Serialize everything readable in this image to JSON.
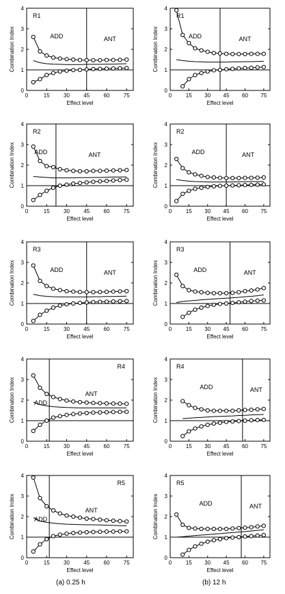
{
  "captions": [
    "(a) 0.25 h",
    "(b) 12 h"
  ],
  "common": {
    "ylabel": "Combination Index",
    "xlabel": "Effect level",
    "xticks": [
      0,
      15,
      30,
      45,
      60,
      75
    ],
    "yticks": [
      0,
      1,
      2,
      3,
      4
    ],
    "xlim": [
      0,
      80
    ],
    "ylim": [
      0,
      4
    ],
    "reference_y": 1
  },
  "chart_data": [
    {
      "type": "line",
      "panel": "R1",
      "column": "0.25 h",
      "divider_x": 45,
      "add_label": "ADD",
      "ant_label": "ANT",
      "label_position": "top-left",
      "x": [
        5,
        10,
        15,
        20,
        25,
        30,
        35,
        40,
        45,
        50,
        55,
        60,
        65,
        70,
        75
      ],
      "series": [
        {
          "role": "upper",
          "values": [
            2.6,
            1.9,
            1.7,
            1.6,
            1.55,
            1.52,
            1.5,
            1.48,
            1.47,
            1.47,
            1.47,
            1.48,
            1.48,
            1.49,
            1.5
          ]
        },
        {
          "role": "mean",
          "values": [
            1.45,
            1.35,
            1.3,
            1.28,
            1.27,
            1.26,
            1.26,
            1.26,
            1.27,
            1.27,
            1.27,
            1.28,
            1.28,
            1.29,
            1.3
          ]
        },
        {
          "role": "lower",
          "values": [
            0.4,
            0.55,
            0.75,
            0.85,
            0.92,
            0.96,
            0.99,
            1.0,
            1.02,
            1.04,
            1.05,
            1.06,
            1.07,
            1.08,
            1.09
          ]
        }
      ]
    },
    {
      "type": "line",
      "panel": "R1",
      "column": "12 h",
      "divider_x": 40,
      "add_label": "ADD",
      "ant_label": "ANT",
      "label_position": "top-left",
      "x": [
        5,
        10,
        15,
        20,
        25,
        30,
        35,
        40,
        45,
        50,
        55,
        60,
        65,
        70,
        75
      ],
      "series": [
        {
          "role": "upper",
          "values": [
            3.9,
            2.7,
            2.3,
            2.05,
            1.95,
            1.88,
            1.82,
            1.8,
            1.78,
            1.77,
            1.77,
            1.77,
            1.78,
            1.78,
            1.78
          ]
        },
        {
          "role": "mean",
          "values": [
            1.5,
            1.45,
            1.42,
            1.4,
            1.39,
            1.38,
            1.38,
            1.38,
            1.38,
            1.39,
            1.39,
            1.4,
            1.4,
            1.41,
            1.42
          ]
        },
        {
          "role": "lower",
          "values": [
            null,
            0.2,
            0.55,
            0.75,
            0.85,
            0.92,
            0.98,
            1.0,
            1.03,
            1.05,
            1.07,
            1.09,
            1.1,
            1.12,
            1.14
          ]
        }
      ]
    },
    {
      "type": "line",
      "panel": "R2",
      "column": "0.25 h",
      "divider_x": 22,
      "add_label": "ADD",
      "ant_label": "ANT",
      "label_position": "top-left",
      "x": [
        5,
        10,
        15,
        20,
        25,
        30,
        35,
        40,
        45,
        50,
        55,
        60,
        65,
        70,
        75
      ],
      "series": [
        {
          "role": "upper",
          "values": [
            2.9,
            2.2,
            1.95,
            1.9,
            1.8,
            1.75,
            1.72,
            1.7,
            1.7,
            1.72,
            1.72,
            1.73,
            1.74,
            1.75,
            1.76
          ]
        },
        {
          "role": "mean",
          "values": [
            1.45,
            1.42,
            1.4,
            1.38,
            1.38,
            1.38,
            1.38,
            1.39,
            1.39,
            1.4,
            1.4,
            1.41,
            1.42,
            1.42,
            1.43
          ]
        },
        {
          "role": "lower",
          "values": [
            0.3,
            0.55,
            0.75,
            0.9,
            1.0,
            1.05,
            1.1,
            1.13,
            1.16,
            1.19,
            1.21,
            1.23,
            1.25,
            1.27,
            1.29
          ]
        }
      ]
    },
    {
      "type": "line",
      "panel": "R2",
      "column": "12 h",
      "divider_x": 45,
      "add_label": "ADD",
      "ant_label": "ANT",
      "label_position": "top-left",
      "x": [
        5,
        10,
        15,
        20,
        25,
        30,
        35,
        40,
        45,
        50,
        55,
        60,
        65,
        70,
        75
      ],
      "series": [
        {
          "role": "upper",
          "values": [
            2.3,
            1.85,
            1.65,
            1.55,
            1.48,
            1.42,
            1.4,
            1.38,
            1.37,
            1.37,
            1.37,
            1.38,
            1.38,
            1.39,
            1.4
          ]
        },
        {
          "role": "mean",
          "values": [
            1.3,
            1.25,
            1.22,
            1.2,
            1.19,
            1.18,
            1.18,
            1.18,
            1.18,
            1.18,
            1.19,
            1.19,
            1.2,
            1.2,
            1.21
          ]
        },
        {
          "role": "lower",
          "values": [
            0.25,
            0.6,
            0.75,
            0.85,
            0.9,
            0.94,
            0.97,
            0.99,
            1.0,
            1.01,
            1.02,
            1.03,
            1.04,
            1.05,
            1.06
          ]
        }
      ]
    },
    {
      "type": "line",
      "panel": "R3",
      "column": "0.25 h",
      "divider_x": 45,
      "add_label": "ADD",
      "ant_label": "ANT",
      "label_position": "top-left",
      "x": [
        5,
        10,
        15,
        20,
        25,
        30,
        35,
        40,
        45,
        50,
        55,
        60,
        65,
        70,
        75
      ],
      "series": [
        {
          "role": "upper",
          "values": [
            2.85,
            2.1,
            1.85,
            1.72,
            1.65,
            1.6,
            1.58,
            1.56,
            1.55,
            1.55,
            1.56,
            1.57,
            1.58,
            1.59,
            1.6
          ]
        },
        {
          "role": "mean",
          "values": [
            1.45,
            1.38,
            1.35,
            1.33,
            1.32,
            1.32,
            1.32,
            1.32,
            1.32,
            1.33,
            1.33,
            1.34,
            1.34,
            1.35,
            1.36
          ]
        },
        {
          "role": "lower",
          "values": [
            0.15,
            0.45,
            0.65,
            0.8,
            0.9,
            0.96,
            1.0,
            1.03,
            1.05,
            1.07,
            1.08,
            1.09,
            1.1,
            1.11,
            1.12
          ]
        }
      ]
    },
    {
      "type": "line",
      "panel": "R3",
      "column": "12 h",
      "divider_x": 48,
      "add_label": "ADD",
      "ant_label": "ANT",
      "label_position": "top-left",
      "x": [
        5,
        10,
        15,
        20,
        25,
        30,
        35,
        40,
        45,
        50,
        55,
        60,
        65,
        70,
        75
      ],
      "series": [
        {
          "role": "upper",
          "values": [
            2.4,
            1.85,
            1.65,
            1.58,
            1.55,
            1.52,
            1.5,
            1.5,
            1.5,
            1.52,
            1.55,
            1.6,
            1.63,
            1.68,
            1.75
          ]
        },
        {
          "role": "mean",
          "values": [
            1.05,
            1.1,
            1.13,
            1.15,
            1.18,
            1.2,
            1.22,
            1.24,
            1.26,
            1.28,
            1.3,
            1.33,
            1.35,
            1.38,
            1.42
          ]
        },
        {
          "role": "lower",
          "values": [
            null,
            0.35,
            0.55,
            0.7,
            0.8,
            0.88,
            0.94,
            0.98,
            1.0,
            1.03,
            1.06,
            1.09,
            1.12,
            1.14,
            1.15
          ]
        }
      ]
    },
    {
      "type": "line",
      "panel": "R4",
      "column": "0.25 h",
      "divider_x": 17,
      "add_label": "ADD",
      "ant_label": "ANT",
      "label_position": "top-right",
      "x": [
        5,
        10,
        15,
        20,
        25,
        30,
        35,
        40,
        45,
        50,
        55,
        60,
        65,
        70,
        75
      ],
      "series": [
        {
          "role": "upper",
          "values": [
            3.2,
            2.6,
            2.3,
            2.15,
            2.05,
            1.98,
            1.93,
            1.9,
            1.88,
            1.86,
            1.85,
            1.84,
            1.83,
            1.83,
            1.82
          ]
        },
        {
          "role": "mean",
          "values": [
            1.9,
            1.78,
            1.72,
            1.68,
            1.66,
            1.64,
            1.63,
            1.62,
            1.62,
            1.62,
            1.62,
            1.62,
            1.62,
            1.62,
            1.62
          ]
        },
        {
          "role": "lower",
          "values": [
            0.5,
            0.8,
            1.0,
            1.15,
            1.22,
            1.28,
            1.32,
            1.35,
            1.37,
            1.39,
            1.4,
            1.41,
            1.42,
            1.43,
            1.43
          ]
        }
      ]
    },
    {
      "type": "line",
      "panel": "R4",
      "column": "12 h",
      "divider_x": 58,
      "add_label": "ADD",
      "ant_label": "ANT",
      "label_position": "top-left",
      "x": [
        10,
        15,
        20,
        25,
        30,
        35,
        40,
        45,
        50,
        55,
        60,
        65,
        70,
        75
      ],
      "series": [
        {
          "role": "upper",
          "values": [
            1.95,
            1.75,
            1.62,
            1.55,
            1.5,
            1.48,
            1.48,
            1.48,
            1.48,
            1.5,
            1.52,
            1.53,
            1.55,
            1.57
          ]
        },
        {
          "role": "mean",
          "values": [
            1.1,
            1.12,
            1.14,
            1.16,
            1.18,
            1.2,
            1.21,
            1.22,
            1.23,
            1.25,
            1.26,
            1.28,
            1.29,
            1.3
          ]
        },
        {
          "role": "lower",
          "values": [
            0.25,
            0.48,
            0.62,
            0.72,
            0.8,
            0.86,
            0.9,
            0.94,
            0.96,
            0.98,
            1.0,
            1.02,
            1.03,
            1.04
          ]
        }
      ]
    },
    {
      "type": "line",
      "panel": "R5",
      "column": "0.25 h",
      "divider_x": 17,
      "add_label": "ADD",
      "ant_label": "ANT",
      "label_position": "top-right",
      "x": [
        5,
        10,
        15,
        20,
        25,
        30,
        35,
        40,
        45,
        50,
        55,
        60,
        65,
        70,
        75
      ],
      "series": [
        {
          "role": "upper",
          "values": [
            3.9,
            2.9,
            2.5,
            2.3,
            2.15,
            2.05,
            2.0,
            1.95,
            1.9,
            1.88,
            1.85,
            1.82,
            1.8,
            1.78,
            1.76
          ]
        },
        {
          "role": "mean",
          "values": [
            1.95,
            1.78,
            1.72,
            1.68,
            1.65,
            1.63,
            1.62,
            1.61,
            1.6,
            1.6,
            1.59,
            1.58,
            1.57,
            1.56,
            1.55
          ]
        },
        {
          "role": "lower",
          "values": [
            0.3,
            0.65,
            0.9,
            1.05,
            1.12,
            1.17,
            1.2,
            1.22,
            1.24,
            1.25,
            1.26,
            1.27,
            1.27,
            1.28,
            1.28
          ]
        }
      ]
    },
    {
      "type": "line",
      "panel": "R5",
      "column": "12 h",
      "divider_x": 57,
      "add_label": "ADD",
      "ant_label": "ANT",
      "label_position": "top-left",
      "x": [
        5,
        10,
        15,
        20,
        25,
        30,
        35,
        40,
        45,
        50,
        55,
        60,
        65,
        70,
        75
      ],
      "series": [
        {
          "role": "upper",
          "values": [
            2.1,
            1.6,
            1.45,
            1.42,
            1.4,
            1.4,
            1.4,
            1.4,
            1.4,
            1.42,
            1.44,
            1.46,
            1.48,
            1.52,
            1.55
          ]
        },
        {
          "role": "mean",
          "values": [
            1.0,
            1.02,
            1.05,
            1.08,
            1.1,
            1.12,
            1.15,
            1.17,
            1.2,
            1.22,
            1.25,
            1.27,
            1.3,
            1.33,
            1.36
          ]
        },
        {
          "role": "lower",
          "values": [
            null,
            0.15,
            0.38,
            0.55,
            0.68,
            0.78,
            0.85,
            0.9,
            0.95,
            0.98,
            1.0,
            1.03,
            1.05,
            1.08,
            1.1
          ]
        }
      ]
    }
  ]
}
